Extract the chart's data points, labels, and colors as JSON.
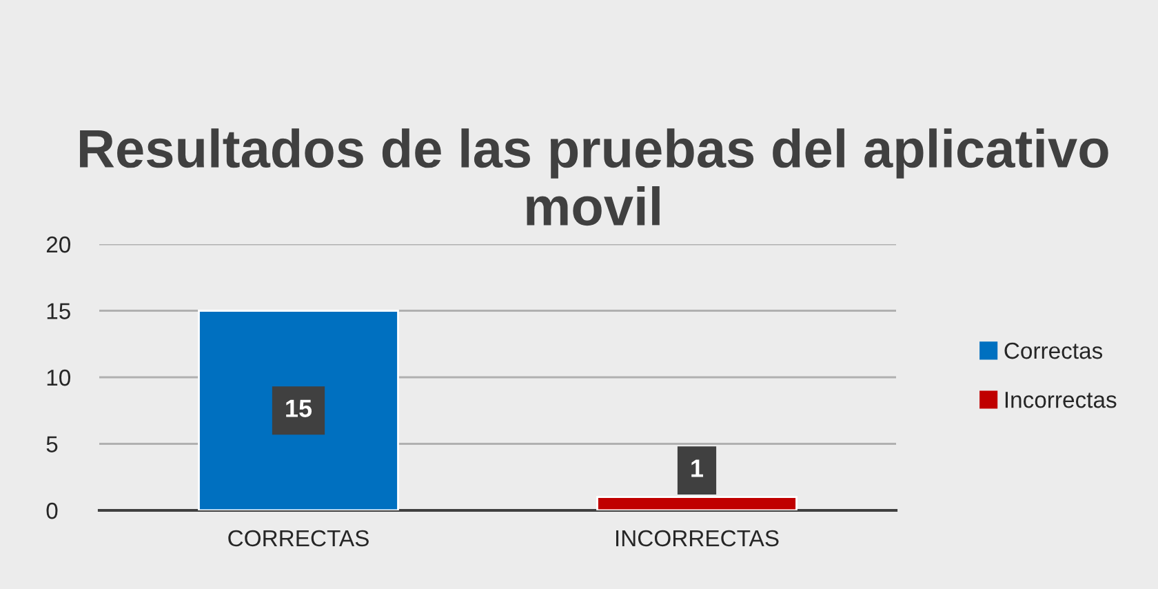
{
  "chart_data": {
    "type": "bar",
    "title": "Resultados de las pruebas del aplicativo movil",
    "categories": [
      "CORRECTAS",
      "INCORRECTAS"
    ],
    "series": [
      {
        "name": "Correctas",
        "color": "#0070c0",
        "values": [
          15,
          null
        ]
      },
      {
        "name": "Incorrectas",
        "color": "#c00000",
        "values": [
          null,
          1
        ]
      }
    ],
    "ylim": [
      0,
      20
    ],
    "yticks": [
      0,
      5,
      10,
      15,
      20
    ],
    "grid": "y",
    "legend": "right",
    "data_labels": true
  }
}
